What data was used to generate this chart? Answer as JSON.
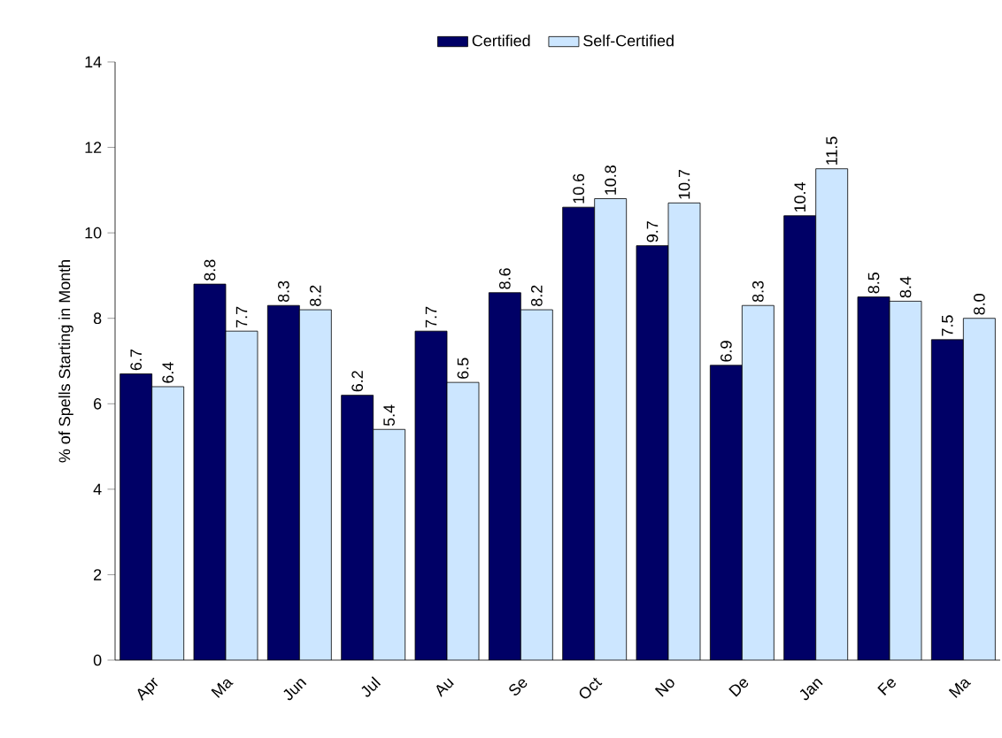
{
  "chart_data": {
    "type": "bar",
    "ylabel": "% of Spells Starting in Month",
    "categories": [
      "Apr",
      "Ma",
      "Jun",
      "Jul",
      "Au",
      "Se",
      "Oct",
      "No",
      "De",
      "Jan",
      "Fe",
      "Ma"
    ],
    "series": [
      {
        "name": "Certified",
        "color": "#000066",
        "values": [
          6.7,
          8.8,
          8.3,
          6.2,
          7.7,
          8.6,
          10.6,
          9.7,
          6.9,
          10.4,
          8.5,
          7.5
        ],
        "value_labels": [
          "6.7",
          "8.8",
          "8.3",
          "6.2",
          "7.7",
          "8.6",
          "10.6",
          "9.7",
          "6.9",
          "10.4",
          "8.5",
          "7.5"
        ]
      },
      {
        "name": "Self-Certified",
        "color": "#cce6ff",
        "values": [
          6.4,
          7.7,
          8.2,
          5.4,
          6.5,
          8.2,
          10.8,
          10.7,
          8.3,
          11.5,
          8.4,
          8.0
        ],
        "value_labels": [
          "6.4",
          "7.7",
          "8.2",
          "5.4",
          "6.5",
          "8.2",
          "10.8",
          "10.7",
          "8.3",
          "11.5",
          "8.4",
          "8.0"
        ]
      }
    ],
    "ylim": [
      0,
      14
    ],
    "yticks": [
      0,
      2,
      4,
      6,
      8,
      10,
      12,
      14
    ],
    "legend": "top"
  }
}
